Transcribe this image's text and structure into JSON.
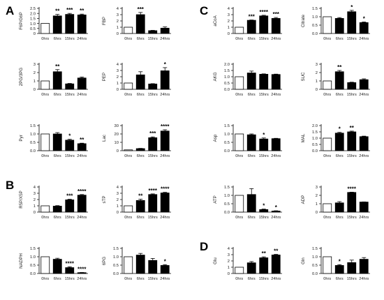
{
  "panels": [
    {
      "letter": "A"
    },
    {
      "letter": "B"
    },
    {
      "letter": "C"
    },
    {
      "letter": "D"
    }
  ],
  "colors": {
    "control": "#ffffff",
    "treated": "#000000",
    "axis": "#000000"
  },
  "chart_data": [
    {
      "type": "bar",
      "panel": "A",
      "ylabel": "F6P/G6P",
      "categories": [
        "0hrs",
        "6hrs",
        "15hrs",
        "24hrs"
      ],
      "values": [
        1,
        1.75,
        1.9,
        1.85
      ],
      "errors": [
        0,
        0.15,
        0.1,
        0.08
      ],
      "sig": [
        "",
        "**",
        "***",
        "**"
      ],
      "ylim": [
        0,
        2.5
      ],
      "yticks": [
        "0",
        "0.5",
        "1.0",
        "1.5",
        "2.0",
        "2.5"
      ]
    },
    {
      "type": "bar",
      "panel": "A",
      "ylabel": "FBP",
      "categories": [
        "0hrs",
        "6hrs",
        "15hrs",
        "24hrs"
      ],
      "values": [
        1,
        3.0,
        0.45,
        0.85
      ],
      "errors": [
        0,
        0.35,
        0.05,
        0.2
      ],
      "sig": [
        "",
        "***",
        "",
        ""
      ],
      "ylim": [
        0,
        4
      ],
      "yticks": [
        "0",
        "1",
        "2",
        "3",
        "4"
      ]
    },
    {
      "type": "bar",
      "panel": "A",
      "ylabel": "2PG/3PG",
      "categories": [
        "0hrs",
        "6hrs",
        "15hrs",
        "24hrs"
      ],
      "values": [
        1,
        2.1,
        0.65,
        1.35
      ],
      "errors": [
        0,
        0.25,
        0.05,
        0.12
      ],
      "sig": [
        "",
        "**",
        "",
        ""
      ],
      "ylim": [
        0,
        3
      ],
      "yticks": [
        "0",
        "1",
        "2",
        "3"
      ]
    },
    {
      "type": "bar",
      "panel": "A",
      "ylabel": "PEP",
      "categories": [
        "0hrs",
        "6hrs",
        "15hrs",
        "24hrs"
      ],
      "values": [
        1,
        2.3,
        0.85,
        2.95
      ],
      "errors": [
        0,
        0.5,
        0.05,
        0.5
      ],
      "sig": [
        "",
        "",
        "",
        "*"
      ],
      "ylim": [
        0,
        4
      ],
      "yticks": [
        "0",
        "1",
        "2",
        "3",
        "4"
      ]
    },
    {
      "type": "bar",
      "panel": "A",
      "ylabel": "Pyr",
      "categories": [
        "0hrs",
        "6hrs",
        "15hrs",
        "24hrs"
      ],
      "values": [
        1,
        1.0,
        0.63,
        0.42
      ],
      "errors": [
        0,
        0.08,
        0.05,
        0.03
      ],
      "sig": [
        "",
        "",
        "*",
        "**"
      ],
      "ylim": [
        0,
        1.5
      ],
      "yticks": [
        "0.0",
        "0.5",
        "1.0",
        "1.5"
      ]
    },
    {
      "type": "bar",
      "panel": "A",
      "ylabel": "Lac",
      "categories": [
        "0hrs",
        "6hrs",
        "15hrs",
        "24hrs"
      ],
      "values": [
        1,
        2.5,
        15.5,
        23.5
      ],
      "errors": [
        0,
        0.3,
        1.0,
        1.5
      ],
      "sig": [
        "",
        "",
        "***",
        "****"
      ],
      "ylim": [
        0,
        30
      ],
      "yticks": [
        "0",
        "10",
        "20",
        "30"
      ]
    },
    {
      "type": "bar",
      "panel": "B",
      "ylabel": "R5P/X5P",
      "categories": [
        "0hrs",
        "6hrs",
        "15hrs",
        "24hrs"
      ],
      "values": [
        1,
        0.95,
        1.95,
        2.7
      ],
      "errors": [
        0,
        0.08,
        0.1,
        0.1
      ],
      "sig": [
        "",
        "",
        "***",
        "****"
      ],
      "ylim": [
        0,
        4
      ],
      "yticks": [
        "0",
        "1",
        "2",
        "3",
        "4"
      ]
    },
    {
      "type": "bar",
      "panel": "B",
      "ylabel": "sTP",
      "categories": [
        "0hrs",
        "6hrs",
        "15hrs",
        "24hrs"
      ],
      "values": [
        1,
        1.85,
        2.8,
        3.05
      ],
      "errors": [
        0,
        0.2,
        0.1,
        0.1
      ],
      "sig": [
        "",
        "**",
        "****",
        "****"
      ],
      "ylim": [
        0,
        4
      ],
      "yticks": [
        "0",
        "1",
        "2",
        "3",
        "4"
      ]
    },
    {
      "type": "bar",
      "panel": "B",
      "ylabel": "NADPH",
      "categories": [
        "0hrs",
        "6hrs",
        "15hrs",
        "24hrs"
      ],
      "values": [
        1,
        0.85,
        0.35,
        0.05
      ],
      "errors": [
        0,
        0.06,
        0.05,
        0.01
      ],
      "sig": [
        "",
        "",
        "****",
        "****"
      ],
      "ylim": [
        0,
        1.5
      ],
      "yticks": [
        "0.0",
        "0.5",
        "1.0",
        "1.5"
      ]
    },
    {
      "type": "bar",
      "panel": "B",
      "ylabel": "6PG",
      "categories": [
        "0hrs",
        "6hrs",
        "15hrs",
        "24hrs"
      ],
      "values": [
        1,
        1.1,
        0.78,
        0.48
      ],
      "errors": [
        0,
        0.1,
        0.12,
        0.05
      ],
      "sig": [
        "",
        "",
        "",
        "*"
      ],
      "ylim": [
        0,
        1.5
      ],
      "yticks": [
        "0.0",
        "0.5",
        "1.0",
        "1.5"
      ]
    },
    {
      "type": "bar",
      "panel": "C",
      "ylabel": "aCoA",
      "categories": [
        "0hrs",
        "6hrs",
        "15hrs",
        "24hrs"
      ],
      "values": [
        1,
        2.1,
        2.8,
        2.4
      ],
      "errors": [
        0,
        0.05,
        0.1,
        0.15
      ],
      "sig": [
        "",
        "***",
        "****",
        "***"
      ],
      "ylim": [
        0,
        4
      ],
      "yticks": [
        "0",
        "1",
        "2",
        "3",
        "4"
      ]
    },
    {
      "type": "bar",
      "panel": "C",
      "ylabel": "Citrate",
      "categories": [
        "0hrs",
        "6hrs",
        "15hrs",
        "24hrs"
      ],
      "values": [
        1,
        0.9,
        1.3,
        0.65
      ],
      "errors": [
        0,
        0.05,
        0.08,
        0.04
      ],
      "sig": [
        "",
        "",
        "*",
        "*"
      ],
      "ylim": [
        0,
        1.5
      ],
      "yticks": [
        "0.0",
        "0.5",
        "1.0",
        "1.5"
      ]
    },
    {
      "type": "bar",
      "panel": "C",
      "ylabel": "AKG",
      "categories": [
        "0hrs",
        "6hrs",
        "15hrs",
        "24hrs"
      ],
      "values": [
        1,
        1.3,
        1.2,
        1.18
      ],
      "errors": [
        0,
        0.15,
        0.03,
        0.03
      ],
      "sig": [
        "",
        "",
        "",
        ""
      ],
      "ylim": [
        0,
        2.0
      ],
      "yticks": [
        "0.0",
        "0.5",
        "1.0",
        "1.5",
        "2.0"
      ]
    },
    {
      "type": "bar",
      "panel": "C",
      "ylabel": "SUC",
      "categories": [
        "0hrs",
        "6hrs",
        "15hrs",
        "24hrs"
      ],
      "values": [
        1,
        2.1,
        0.8,
        1.15
      ],
      "errors": [
        0,
        0.15,
        0.05,
        0.1
      ],
      "sig": [
        "",
        "**",
        "",
        ""
      ],
      "ylim": [
        0,
        3
      ],
      "yticks": [
        "0",
        "1",
        "2",
        "3"
      ]
    },
    {
      "type": "bar",
      "panel": "C",
      "ylabel": "Asp",
      "categories": [
        "0hrs",
        "6hrs",
        "15hrs",
        "24hrs"
      ],
      "values": [
        1,
        0.95,
        0.7,
        0.72
      ],
      "errors": [
        0,
        0.05,
        0.06,
        0.02
      ],
      "sig": [
        "",
        "",
        "*",
        ""
      ],
      "ylim": [
        0,
        1.5
      ],
      "yticks": [
        "0.0",
        "0.5",
        "1.0",
        "1.5"
      ]
    },
    {
      "type": "bar",
      "panel": "C",
      "ylabel": "MAL",
      "categories": [
        "0hrs",
        "6hrs",
        "15hrs",
        "24hrs"
      ],
      "values": [
        1,
        1.4,
        1.5,
        1.12
      ],
      "errors": [
        0,
        0.06,
        0.06,
        0.04
      ],
      "sig": [
        "",
        "*",
        "**",
        ""
      ],
      "ylim": [
        0,
        2.0
      ],
      "yticks": [
        "0.0",
        "0.5",
        "1.0",
        "1.5",
        "2.0"
      ]
    },
    {
      "type": "bar",
      "panel": "C",
      "ylabel": "ATP",
      "categories": [
        "0hrs",
        "6hrs",
        "15hrs",
        "24hrs"
      ],
      "values": [
        1,
        1.05,
        0.15,
        0.06
      ],
      "errors": [
        0,
        0.35,
        0.03,
        0.02
      ],
      "sig": [
        "",
        "",
        "*",
        "*"
      ],
      "ylim": [
        0,
        1.5
      ],
      "yticks": [
        "0.0",
        "0.5",
        "1.0",
        "1.5"
      ]
    },
    {
      "type": "bar",
      "panel": "C",
      "ylabel": "ADP",
      "categories": [
        "0hrs",
        "6hrs",
        "15hrs",
        "24hrs"
      ],
      "values": [
        1,
        1.1,
        2.35,
        1.2
      ],
      "errors": [
        0,
        0.15,
        0.03,
        0.02
      ],
      "sig": [
        "",
        "",
        "****",
        ""
      ],
      "ylim": [
        0,
        3
      ],
      "yticks": [
        "0",
        "1",
        "2",
        "3"
      ]
    },
    {
      "type": "bar",
      "panel": "D",
      "ylabel": "Glu",
      "categories": [
        "0hrs",
        "6hrs",
        "15hrs",
        "24hrs"
      ],
      "values": [
        1,
        1.7,
        2.5,
        2.95
      ],
      "errors": [
        0,
        0.2,
        0.15,
        0.1
      ],
      "sig": [
        "",
        "",
        "**",
        "**"
      ],
      "ylim": [
        0,
        4
      ],
      "yticks": [
        "0",
        "1",
        "2",
        "3",
        "4"
      ]
    },
    {
      "type": "bar",
      "panel": "D",
      "ylabel": "Gln",
      "categories": [
        "0hrs",
        "6hrs",
        "15hrs",
        "24hrs"
      ],
      "values": [
        1,
        0.48,
        0.65,
        0.85
      ],
      "errors": [
        0,
        0.05,
        0.15,
        0.1
      ],
      "sig": [
        "",
        "*",
        "",
        ""
      ],
      "ylim": [
        0,
        1.5
      ],
      "yticks": [
        "0.0",
        "0.5",
        "1.0",
        "1.5"
      ]
    }
  ]
}
